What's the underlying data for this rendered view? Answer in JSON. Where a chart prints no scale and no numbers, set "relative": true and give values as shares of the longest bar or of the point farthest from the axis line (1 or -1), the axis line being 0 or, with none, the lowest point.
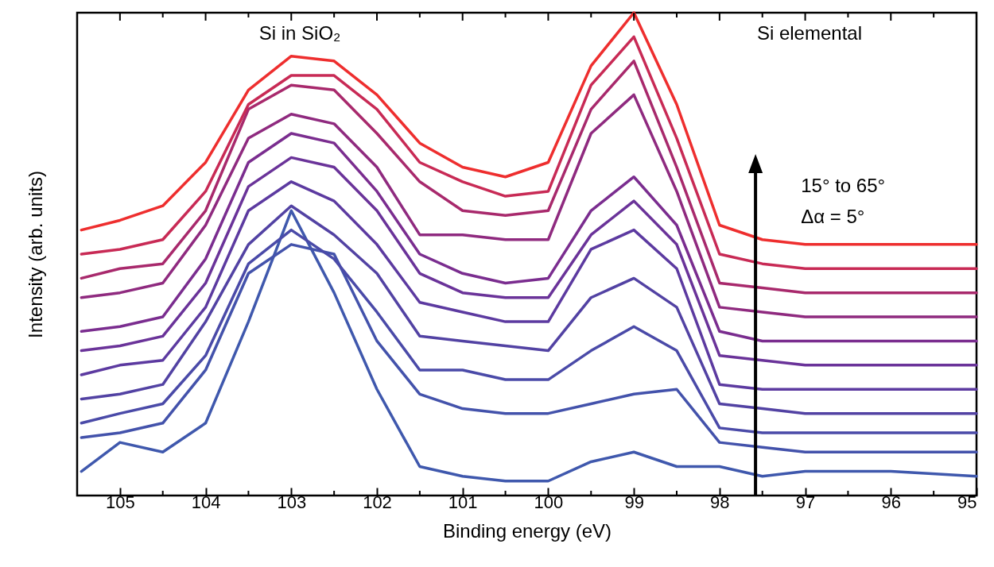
{
  "chart_data": {
    "type": "line",
    "relative": true,
    "xlabel": "Binding energy (eV)",
    "ylabel": "Intensity (arb. units)",
    "xlim": [
      105.5,
      95
    ],
    "xticks": [
      105,
      104,
      103,
      102,
      101,
      100,
      99,
      98,
      97,
      96,
      95
    ],
    "x": [
      105.45,
      105,
      104.5,
      104,
      103.5,
      103,
      102.5,
      102,
      101.5,
      101,
      100.5,
      100,
      99.5,
      99,
      98.5,
      98,
      97.5,
      97,
      96,
      95
    ],
    "grid": false,
    "line_style": "solid",
    "marker": "none",
    "annotations": [
      "Si in SiO₂",
      "Si elemental",
      "15° to 65°",
      "Δα = 5°"
    ],
    "series": [
      {
        "color": "#3f58ad",
        "values": [
          0.05,
          0.11,
          0.09,
          0.15,
          0.36,
          0.59,
          0.42,
          0.22,
          0.06,
          0.04,
          0.03,
          0.03,
          0.07,
          0.09,
          0.06,
          0.06,
          0.04,
          0.05,
          0.05,
          0.04
        ]
      },
      {
        "color": "#4352ab",
        "values": [
          0.12,
          0.13,
          0.15,
          0.26,
          0.46,
          0.52,
          0.5,
          0.32,
          0.21,
          0.18,
          0.17,
          0.17,
          0.19,
          0.21,
          0.22,
          0.11,
          0.1,
          0.09,
          0.09,
          0.09
        ]
      },
      {
        "color": "#4a4aa8",
        "values": [
          0.15,
          0.17,
          0.19,
          0.29,
          0.48,
          0.55,
          0.49,
          0.38,
          0.26,
          0.26,
          0.24,
          0.24,
          0.3,
          0.35,
          0.3,
          0.14,
          0.13,
          0.13,
          0.13,
          0.13
        ]
      },
      {
        "color": "#5242a3",
        "values": [
          0.2,
          0.21,
          0.23,
          0.36,
          0.52,
          0.6,
          0.54,
          0.46,
          0.33,
          0.32,
          0.31,
          0.3,
          0.41,
          0.45,
          0.39,
          0.19,
          0.18,
          0.17,
          0.17,
          0.17
        ]
      },
      {
        "color": "#5c3aa0",
        "values": [
          0.25,
          0.27,
          0.28,
          0.39,
          0.59,
          0.65,
          0.61,
          0.52,
          0.4,
          0.38,
          0.36,
          0.36,
          0.51,
          0.55,
          0.47,
          0.23,
          0.22,
          0.22,
          0.22,
          0.22
        ]
      },
      {
        "color": "#6a3399",
        "values": [
          0.3,
          0.31,
          0.33,
          0.44,
          0.64,
          0.7,
          0.68,
          0.59,
          0.46,
          0.42,
          0.41,
          0.41,
          0.54,
          0.61,
          0.52,
          0.29,
          0.28,
          0.27,
          0.27,
          0.27
        ]
      },
      {
        "color": "#7a2d8f",
        "values": [
          0.34,
          0.35,
          0.37,
          0.49,
          0.69,
          0.75,
          0.73,
          0.63,
          0.5,
          0.46,
          0.44,
          0.45,
          0.59,
          0.66,
          0.56,
          0.34,
          0.32,
          0.32,
          0.32,
          0.32
        ]
      },
      {
        "color": "#8f2a7f",
        "values": [
          0.41,
          0.42,
          0.44,
          0.56,
          0.74,
          0.79,
          0.77,
          0.68,
          0.54,
          0.54,
          0.53,
          0.53,
          0.75,
          0.83,
          0.63,
          0.39,
          0.38,
          0.37,
          0.37,
          0.37
        ]
      },
      {
        "color": "#a8296c",
        "values": [
          0.45,
          0.47,
          0.48,
          0.59,
          0.8,
          0.85,
          0.84,
          0.75,
          0.65,
          0.59,
          0.58,
          0.59,
          0.8,
          0.9,
          0.68,
          0.44,
          0.43,
          0.42,
          0.42,
          0.42
        ]
      },
      {
        "color": "#c82a55",
        "values": [
          0.5,
          0.51,
          0.53,
          0.63,
          0.81,
          0.87,
          0.87,
          0.8,
          0.69,
          0.65,
          0.62,
          0.63,
          0.85,
          0.95,
          0.74,
          0.5,
          0.48,
          0.47,
          0.47,
          0.47
        ]
      },
      {
        "color": "#ee2e2e",
        "values": [
          0.55,
          0.57,
          0.6,
          0.69,
          0.84,
          0.91,
          0.9,
          0.83,
          0.73,
          0.68,
          0.66,
          0.69,
          0.89,
          1,
          0.81,
          0.56,
          0.53,
          0.52,
          0.52,
          0.52
        ]
      }
    ]
  }
}
